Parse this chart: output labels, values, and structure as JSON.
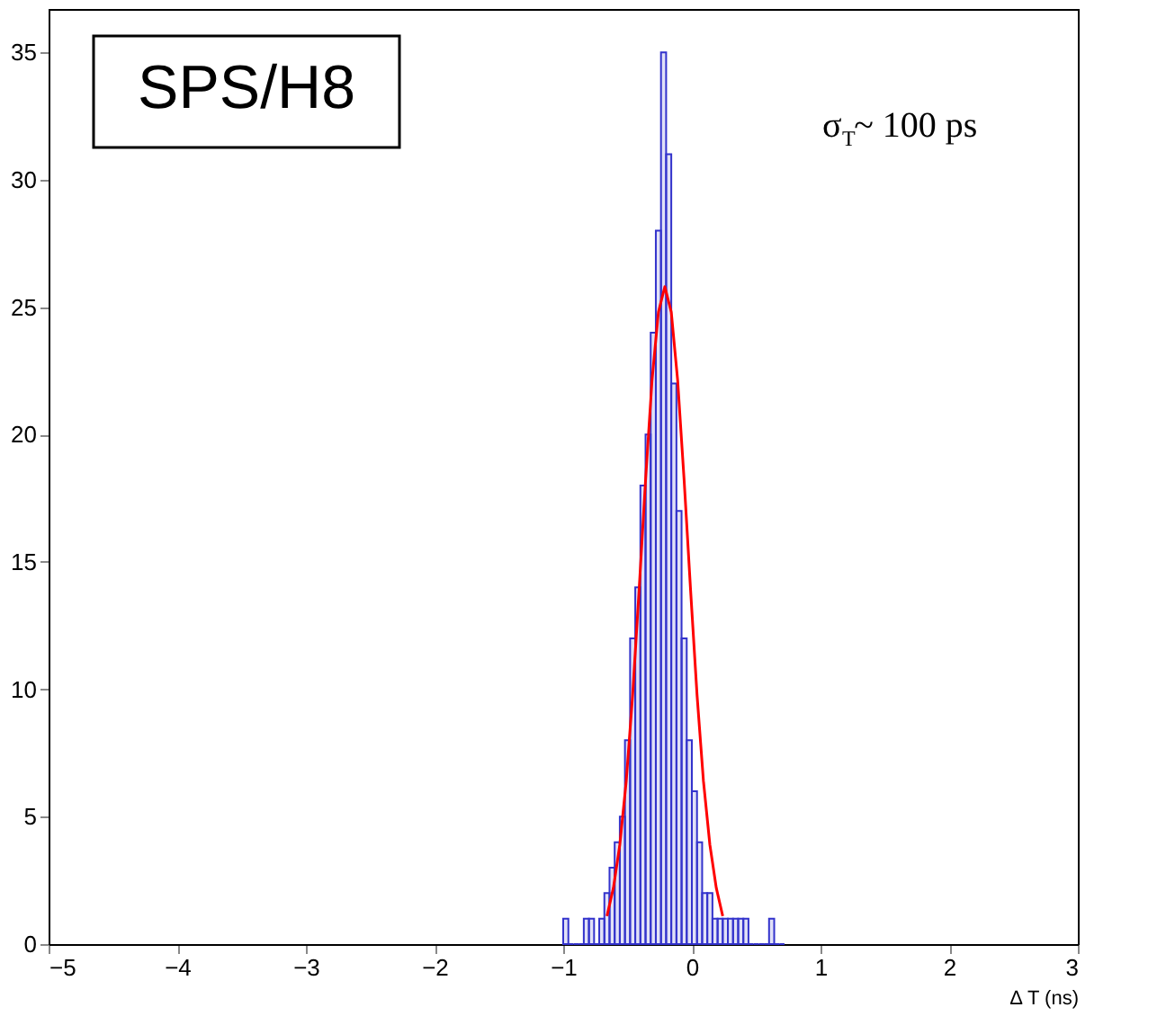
{
  "chart_data": {
    "type": "histogram",
    "bins": [
      -1.0,
      -0.96,
      -0.92,
      -0.88,
      -0.84,
      -0.8,
      -0.76,
      -0.72,
      -0.68,
      -0.64,
      -0.6,
      -0.56,
      -0.52,
      -0.48,
      -0.44,
      -0.4,
      -0.36,
      -0.32,
      -0.28,
      -0.24,
      -0.2,
      -0.16,
      -0.12,
      -0.08,
      -0.04,
      0.0,
      0.04,
      0.08,
      0.12,
      0.16,
      0.2,
      0.24,
      0.28,
      0.32,
      0.36,
      0.4,
      0.44,
      0.48,
      0.52,
      0.56,
      0.6,
      0.64,
      0.68,
      0.72
    ],
    "values": [
      1,
      0,
      0,
      0,
      1,
      1,
      0,
      1,
      2,
      3,
      4,
      5,
      8,
      12,
      14,
      18,
      20,
      24,
      28,
      35,
      31,
      22,
      17,
      12,
      8,
      6,
      4,
      2,
      2,
      1,
      1,
      1,
      1,
      1,
      1,
      1,
      0,
      0,
      0,
      0,
      1,
      0,
      0
    ],
    "color": "#3333cc",
    "series": [
      {
        "type": "line",
        "color": "#ff0000",
        "x": [
          -0.66,
          -0.61,
          -0.56,
          -0.51,
          -0.46,
          -0.41,
          -0.36,
          -0.31,
          -0.26,
          -0.21,
          -0.16,
          -0.11,
          -0.06,
          -0.01,
          0.04,
          0.09,
          0.14,
          0.19,
          0.24
        ],
        "values": [
          1.1,
          2.2,
          3.9,
          6.4,
          9.8,
          13.9,
          18.2,
          22.1,
          24.8,
          25.8,
          24.8,
          22.1,
          18.2,
          13.9,
          9.8,
          6.4,
          3.9,
          2.2,
          1.1
        ]
      }
    ],
    "xlabel": "Δ T (ns)",
    "annotations": [
      "SPS/H8",
      "σ$_{T}$~ 100 ps"
    ],
    "xlim": [
      -5,
      3
    ],
    "xticks": [
      -5,
      -4,
      -3,
      -2,
      -1,
      0,
      1,
      2,
      3
    ],
    "ylim": [
      0,
      36.7
    ],
    "yticks": [
      0,
      5,
      10,
      15,
      20,
      25,
      30,
      35
    ],
    "grid": false
  }
}
